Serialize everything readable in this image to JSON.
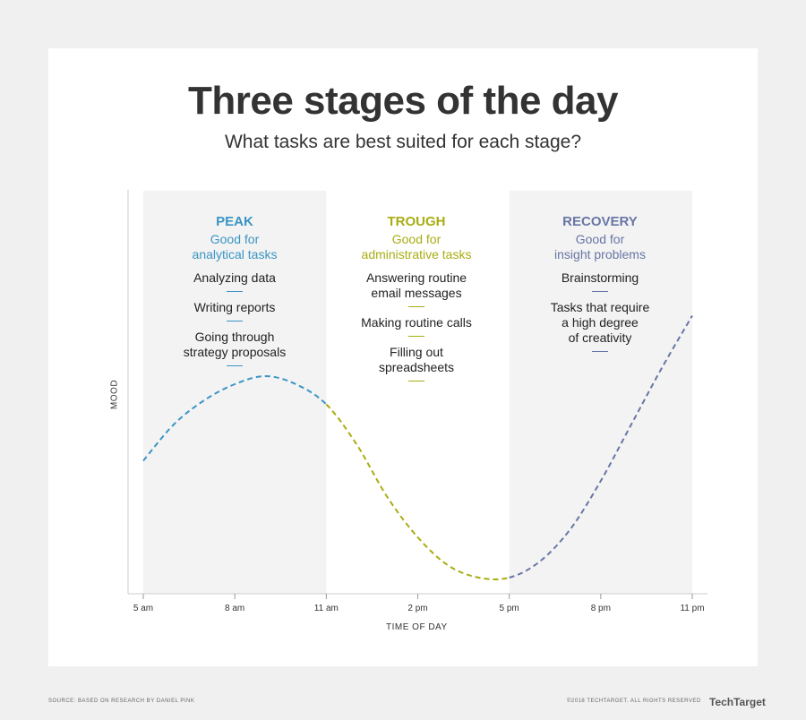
{
  "header": {
    "title": "Three stages of the day",
    "subtitle": "What tasks are best suited for each stage?"
  },
  "stages": [
    {
      "name": "PEAK",
      "desc_line1": "Good for",
      "desc_line2": "analytical tasks",
      "color": "#3a95c4",
      "tasks": [
        [
          "Analyzing data"
        ],
        [
          "Writing reports"
        ],
        [
          "Going through",
          "strategy proposals"
        ]
      ]
    },
    {
      "name": "TROUGH",
      "desc_line1": "Good for",
      "desc_line2": "administrative tasks",
      "color": "#a8ad12",
      "tasks": [
        [
          "Answering routine",
          "email messages"
        ],
        [
          "Making routine calls"
        ],
        [
          "Filling out",
          "spreadsheets"
        ]
      ]
    },
    {
      "name": "RECOVERY",
      "desc_line1": "Good for",
      "desc_line2": "insight problems",
      "color": "#6876a6",
      "tasks": [
        [
          "Brainstorming"
        ],
        [
          "Tasks that require",
          "a high degree",
          "of creativity"
        ]
      ]
    }
  ],
  "chart_data": {
    "type": "line",
    "xlabel": "TIME OF DAY",
    "ylabel": "MOOD",
    "x_ticks": [
      "5 am",
      "8 am",
      "11 am",
      "2 pm",
      "5 pm",
      "8 pm",
      "11 pm"
    ],
    "x_range_hours": [
      5,
      23
    ],
    "y_range": [
      0,
      100
    ],
    "shaded_bands": [
      {
        "stage": "PEAK",
        "from": "5 am",
        "to": "11 am"
      },
      {
        "stage": "RECOVERY",
        "from": "5 pm",
        "to": "11 pm"
      }
    ],
    "series": [
      {
        "style": "dashed",
        "points": [
          {
            "hour": 5,
            "mood": 33
          },
          {
            "hour": 6,
            "mood": 42
          },
          {
            "hour": 7,
            "mood": 48
          },
          {
            "hour": 8,
            "mood": 52
          },
          {
            "hour": 9,
            "mood": 54
          },
          {
            "hour": 10,
            "mood": 52
          },
          {
            "hour": 11,
            "mood": 47
          },
          {
            "hour": 12,
            "mood": 37
          },
          {
            "hour": 13,
            "mood": 24
          },
          {
            "hour": 14,
            "mood": 14
          },
          {
            "hour": 15,
            "mood": 7
          },
          {
            "hour": 16,
            "mood": 4
          },
          {
            "hour": 17,
            "mood": 4
          },
          {
            "hour": 18,
            "mood": 8
          },
          {
            "hour": 19,
            "mood": 16
          },
          {
            "hour": 20,
            "mood": 28
          },
          {
            "hour": 21,
            "mood": 42
          },
          {
            "hour": 22,
            "mood": 56
          },
          {
            "hour": 23,
            "mood": 69
          }
        ],
        "segment_colors": [
          {
            "from": 5,
            "to": 11,
            "color": "#3a95c4"
          },
          {
            "from": 11,
            "to": 17,
            "color": "#a8ad12"
          },
          {
            "from": 17,
            "to": 23,
            "color": "#6876a6"
          }
        ]
      }
    ]
  },
  "footer": {
    "source": "SOURCE: BASED ON RESEARCH BY DANIEL PINK",
    "copyright": "©2018 TECHTARGET. ALL RIGHTS RESERVED",
    "brand": "TechTarget"
  }
}
